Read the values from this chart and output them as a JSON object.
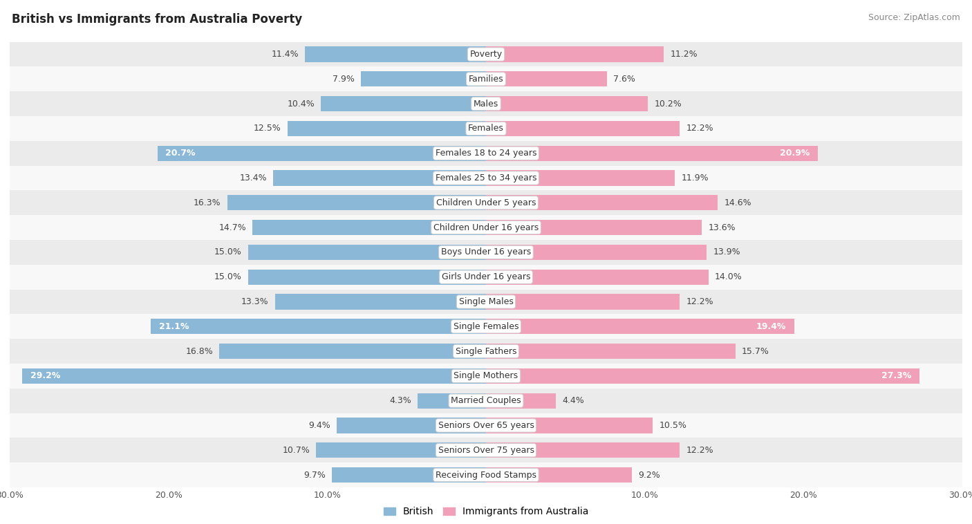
{
  "title": "British vs Immigrants from Australia Poverty",
  "source": "Source: ZipAtlas.com",
  "categories": [
    "Poverty",
    "Families",
    "Males",
    "Females",
    "Females 18 to 24 years",
    "Females 25 to 34 years",
    "Children Under 5 years",
    "Children Under 16 years",
    "Boys Under 16 years",
    "Girls Under 16 years",
    "Single Males",
    "Single Females",
    "Single Fathers",
    "Single Mothers",
    "Married Couples",
    "Seniors Over 65 years",
    "Seniors Over 75 years",
    "Receiving Food Stamps"
  ],
  "british": [
    11.4,
    7.9,
    10.4,
    12.5,
    20.7,
    13.4,
    16.3,
    14.7,
    15.0,
    15.0,
    13.3,
    21.1,
    16.8,
    29.2,
    4.3,
    9.4,
    10.7,
    9.7
  ],
  "immigrants": [
    11.2,
    7.6,
    10.2,
    12.2,
    20.9,
    11.9,
    14.6,
    13.6,
    13.9,
    14.0,
    12.2,
    19.4,
    15.7,
    27.3,
    4.4,
    10.5,
    12.2,
    9.2
  ],
  "british_color": "#8cb8d8",
  "immigrant_color": "#f0a0b8",
  "row_bg_gray": "#ebebeb",
  "row_bg_white": "#f8f8f8",
  "max_val": 30.0,
  "inside_threshold": 17.5,
  "bar_height": 0.62,
  "label_fontsize": 9.0,
  "cat_fontsize": 9.0
}
